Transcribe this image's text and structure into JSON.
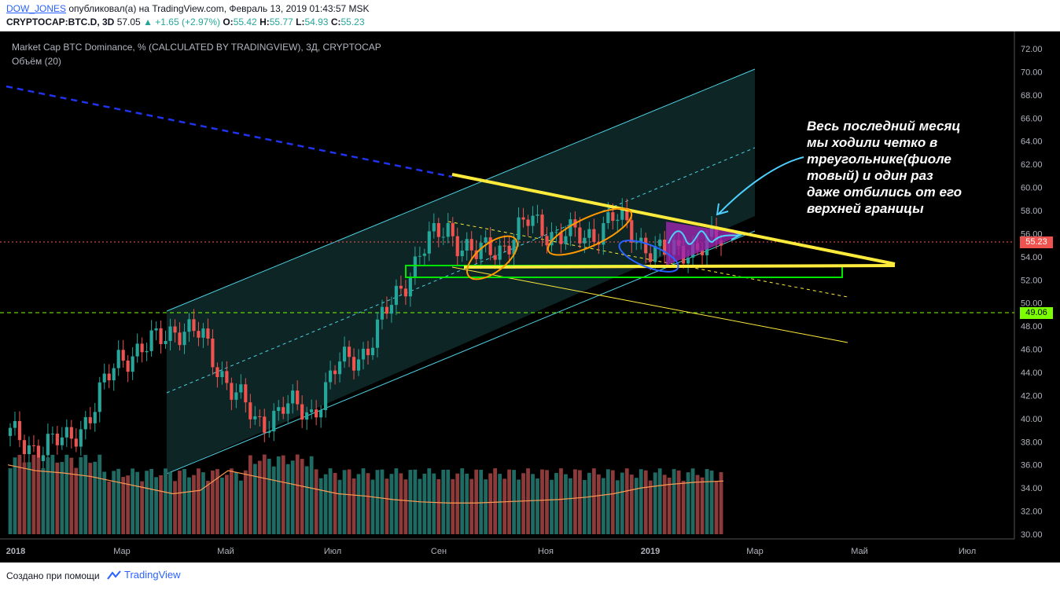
{
  "header": {
    "author": "DOW_JONES",
    "published_text": "опубликовал(а) на TradingView.com, Февраль 13, 2019 01:43:57 MSK",
    "symbol": "CRYPTOCAP:BTC.D, 3D",
    "last": "57.05",
    "change": "▲ +1.65 (+2.97%)",
    "o_label": "O:",
    "o": "55.42",
    "h_label": "H:",
    "h": "55.77",
    "l_label": "L:",
    "l": "54.93",
    "c_label": "C:",
    "c": "55.23"
  },
  "chart": {
    "title": "Market Cap BTC Dominance, % (CALCULATED BY TRADINGVIEW), 3Д, CRYPTOCAP",
    "volume_label": "Объём (20)",
    "annotation": "Весь последний месяц\nмы ходили четко в\nтреугольнике(фиоле\nтовый) и один раз\nдаже отбились от его\nверхней границы",
    "price_axis": [
      "72.00",
      "70.00",
      "68.00",
      "66.00",
      "64.00",
      "62.00",
      "60.00",
      "58.00",
      "56.00",
      "54.00",
      "52.00",
      "50.00",
      "48.00",
      "46.00",
      "44.00",
      "42.00",
      "40.00",
      "38.00",
      "36.00",
      "34.00",
      "32.00",
      "30.00"
    ],
    "time_axis": [
      "2018",
      "Мар",
      "Май",
      "Июл",
      "Сен",
      "Ноя",
      "2019",
      "Мар",
      "Май",
      "Июл"
    ],
    "last_price_tag": "55.23",
    "level_tag": "49.06",
    "colors": {
      "up": "#26a69a",
      "down": "#ef5350",
      "channel": "#4dd0e1",
      "triangle": "#ffeb3b",
      "support": "#00e600",
      "purple": "#9c27b0"
    }
  },
  "chart_data": {
    "type": "line",
    "title": "Market Cap BTC Dominance, % (CALCULATED BY TRADINGVIEW), 3Д, CRYPTOCAP",
    "ylim": [
      30,
      72
    ],
    "x": [
      "2018-01",
      "2018-01",
      "2018-02",
      "2018-02",
      "2018-03",
      "2018-03",
      "2018-04",
      "2018-04",
      "2018-05",
      "2018-05",
      "2018-06",
      "2018-06",
      "2018-07",
      "2018-07",
      "2018-08",
      "2018-08",
      "2018-09",
      "2018-09",
      "2018-10",
      "2018-10",
      "2018-11",
      "2018-11",
      "2018-12",
      "2018-12",
      "2019-01",
      "2019-01",
      "2019-02"
    ],
    "series": [
      {
        "values": [
          38.5,
          37.5,
          38.0,
          40.5,
          45.5,
          46.0,
          48.0,
          47.0,
          43.0,
          39.5,
          41.0,
          40.5,
          44.5,
          46.0,
          50.0,
          54.5,
          56.5,
          54.0,
          55.0,
          57.0,
          56.0,
          55.5,
          57.5,
          55.5,
          54.0,
          55.0,
          55.23
        ]
      }
    ],
    "volume_values": [
      36.0,
      35.5,
      35.3,
      35.0,
      34.5,
      34.0,
      33.5,
      33.8,
      35.5,
      35.0,
      34.5,
      34.0,
      33.5,
      33.3,
      33.0,
      32.8,
      32.7,
      32.7,
      32.8,
      32.9,
      33.0,
      33.2,
      33.5,
      34.0,
      34.3,
      34.5,
      34.6
    ]
  }
}
